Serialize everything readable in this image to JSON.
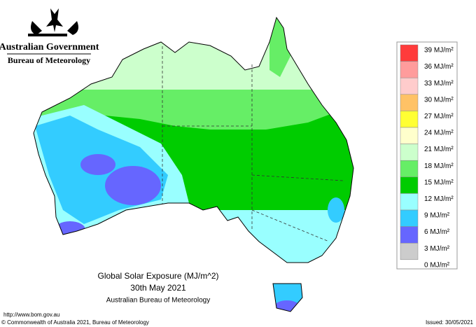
{
  "header": {
    "government": "Australian Government",
    "bureau": "Bureau of Meteorology"
  },
  "title": {
    "lines": [
      "Global Solar Exposure (MJ/m^2)",
      "30th May 2021",
      "Australian Bureau of Meteorology"
    ]
  },
  "legend": {
    "labels": [
      "39 MJ/m²",
      "36 MJ/m²",
      "33 MJ/m²",
      "30 MJ/m²",
      "27 MJ/m²",
      "24 MJ/m²",
      "21 MJ/m²",
      "18 MJ/m²",
      "15 MJ/m²",
      "12 MJ/m²",
      "9 MJ/m²",
      "6 MJ/m²",
      "3 MJ/m²",
      "0 MJ/m²"
    ],
    "colors": [
      "#ff3b3b",
      "#ff9c9c",
      "#ffcccc",
      "#ffc266",
      "#ffff33",
      "#ffffcc",
      "#ccffcc",
      "#66ee66",
      "#00cc00",
      "#99ffff",
      "#33ccff",
      "#6666ff",
      "#cccccc"
    ]
  },
  "footer": {
    "url": "http://www.bom.gov.au",
    "copyright": "© Commonwealth of Australia 2021, Bureau of Meteorology",
    "issued": "Issued: 30/05/2021"
  }
}
